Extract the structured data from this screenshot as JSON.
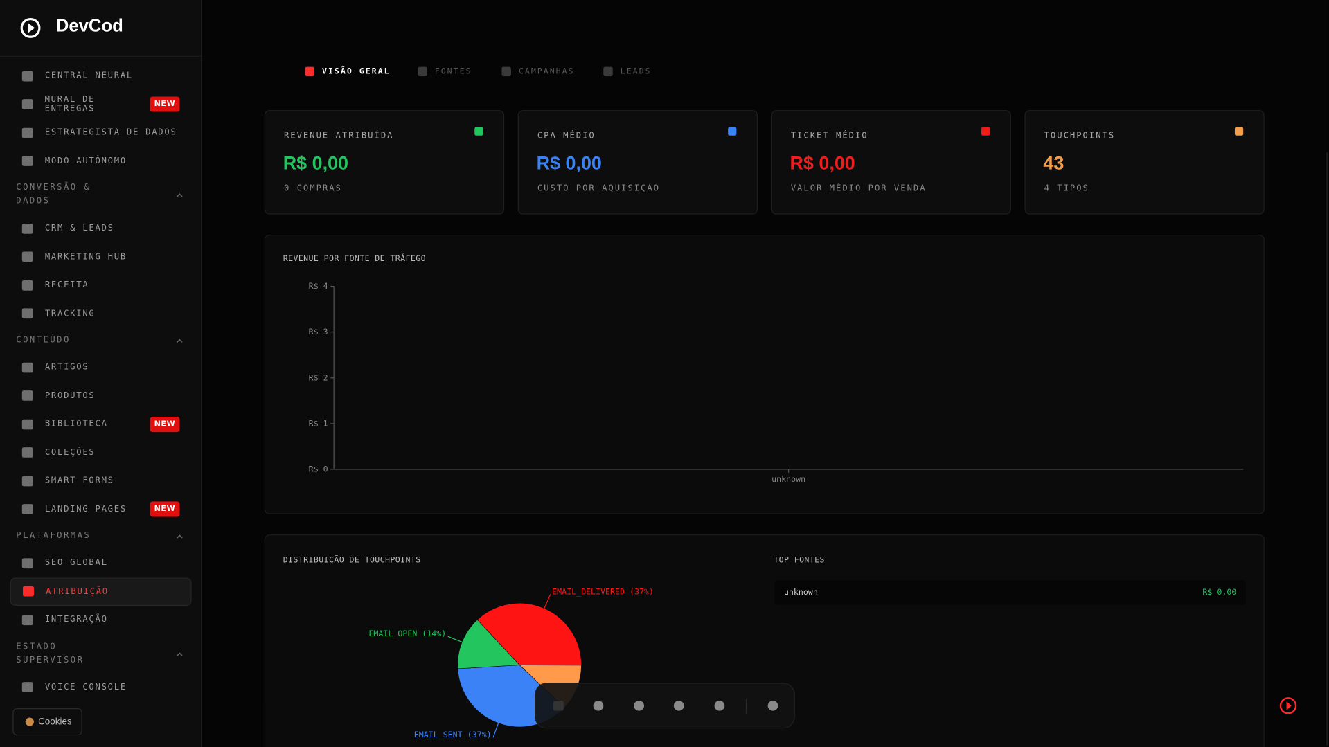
{
  "brand": "DevCod",
  "sidebar": {
    "top": [
      {
        "label": "CENTRAL NEURAL"
      },
      {
        "label": "MURAL DE ENTREGAS",
        "badge": "NEW"
      },
      {
        "label": "ESTRATEGISTA DE DADOS"
      },
      {
        "label": "MODO AUTÔNOMO"
      }
    ],
    "sections": [
      {
        "title": "CONVERSÃO & DADOS",
        "items": [
          {
            "label": "CRM & LEADS"
          },
          {
            "label": "MARKETING HUB"
          },
          {
            "label": "RECEITA"
          },
          {
            "label": "TRACKING"
          }
        ]
      },
      {
        "title": "CONTEÚDO",
        "items": [
          {
            "label": "ARTIGOS"
          },
          {
            "label": "PRODUTOS"
          },
          {
            "label": "BIBLIOTECA",
            "badge": "NEW"
          },
          {
            "label": "COLEÇÕES"
          },
          {
            "label": "SMART FORMS"
          },
          {
            "label": "LANDING PAGES",
            "badge": "NEW"
          }
        ]
      },
      {
        "title": "PLATAFORMAS",
        "items": [
          {
            "label": "SEO GLOBAL"
          },
          {
            "label": "ATRIBUIÇÃO",
            "active": true
          },
          {
            "label": "INTEGRAÇÃO"
          }
        ]
      },
      {
        "title": "ESTADO SUPERVISOR",
        "items": [
          {
            "label": "VOICE CONSOLE"
          }
        ]
      }
    ],
    "cookies": "Cookies"
  },
  "tabs": [
    {
      "label": "VISÃO GERAL",
      "active": true
    },
    {
      "label": "FONTES"
    },
    {
      "label": "CAMPANHAS"
    },
    {
      "label": "LEADS"
    }
  ],
  "cards": [
    {
      "label": "REVENUE ATRIBUÍDA",
      "value": "R$ 0,00",
      "sub": "0 COMPRAS",
      "color": "#22c55e"
    },
    {
      "label": "CPA MÉDIO",
      "value": "R$ 0,00",
      "sub": "CUSTO POR AQUISIÇÃO",
      "color": "#3b82f6"
    },
    {
      "label": "TICKET MÉDIO",
      "value": "R$ 0,00",
      "sub": "VALOR MÉDIO POR VENDA",
      "color": "#ef1c1c"
    },
    {
      "label": "TOUCHPOINTS",
      "value": "43",
      "sub": "4 TIPOS",
      "color": "#f59e4b"
    }
  ],
  "chart_data": [
    {
      "type": "bar",
      "title": "REVENUE POR FONTE DE TRÁFEGO",
      "categories": [
        "unknown"
      ],
      "values": [
        0
      ],
      "color": "#ef4444",
      "ylim": [
        0,
        4
      ],
      "yticks": [
        {
          "value": 0,
          "label": "R$ 0"
        },
        {
          "value": 1,
          "label": "R$ 1"
        },
        {
          "value": 2,
          "label": "R$ 2"
        },
        {
          "value": 3,
          "label": "R$ 3"
        },
        {
          "value": 4,
          "label": "R$ 4"
        }
      ]
    },
    {
      "type": "pie",
      "title": "DISTRIBUIÇÃO DE TOUCHPOINTS",
      "labels": [
        "EMAIL_DELIVERED (37%)",
        null,
        "EMAIL_SENT (37%)",
        "EMAIL_OPEN (14%)"
      ],
      "values": [
        37,
        12,
        37,
        14
      ],
      "colors": [
        "#ff1414",
        "#ff9a4a",
        "#3b82f6",
        "#22c55e"
      ]
    }
  ],
  "top_sources": {
    "title": "TOP FONTES",
    "rows": [
      {
        "name": "unknown",
        "value": "R$ 0,00"
      }
    ]
  }
}
